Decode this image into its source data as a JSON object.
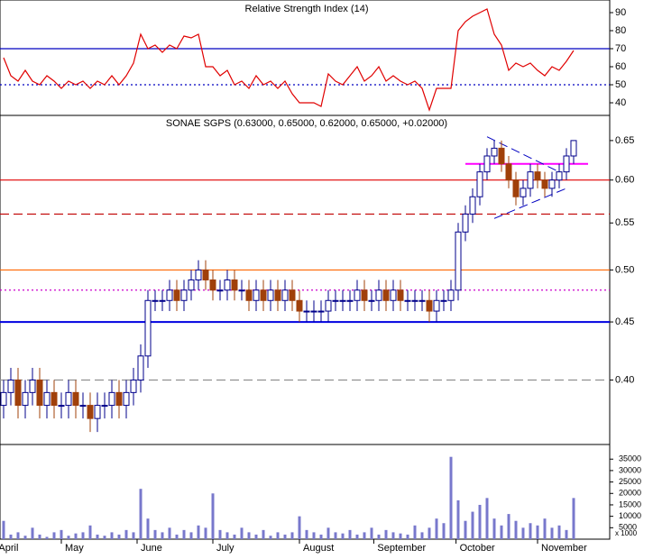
{
  "chart_data": [
    {
      "type": "line",
      "title": "Relative Strength Index (14)",
      "color": "#e00000",
      "ylim": [
        33,
        97
      ],
      "yticks": [
        40,
        50,
        60,
        70,
        80,
        90
      ],
      "levels": [
        {
          "value": 70,
          "color": "#0000c0",
          "style": "solid"
        },
        {
          "value": 50,
          "color": "#0000c0",
          "style": "dotted"
        }
      ],
      "values": [
        65,
        55,
        52,
        58,
        52,
        50,
        55,
        52,
        48,
        52,
        50,
        52,
        48,
        52,
        50,
        55,
        50,
        55,
        62,
        78,
        70,
        72,
        68,
        72,
        70,
        77,
        76,
        78,
        60,
        60,
        55,
        58,
        50,
        52,
        48,
        55,
        50,
        52,
        48,
        52,
        45,
        40,
        40,
        40,
        38,
        56,
        52,
        50,
        55,
        60,
        52,
        55,
        60,
        52,
        55,
        52,
        50,
        52,
        48,
        36,
        48,
        48,
        48,
        80,
        85,
        88,
        90,
        92,
        78,
        72,
        58,
        62,
        60,
        62,
        58,
        55,
        60,
        58,
        63,
        69
      ]
    },
    {
      "type": "candlestick",
      "title": "SONAE SGPS (0.63000, 0.65000, 0.62000, 0.65000, +0.02000)",
      "log_scale": true,
      "ylim": [
        0.351,
        0.684
      ],
      "yticks": [
        {
          "value": 0.4,
          "label": "0.40"
        },
        0.45,
        {
          "value": 0.5,
          "label": "0.50"
        },
        0.55,
        {
          "value": 0.6,
          "label": "0.60"
        },
        0.65
      ],
      "up_color": "#00008b",
      "down_color": "#a0400a",
      "open": [
        0.38,
        0.39,
        0.4,
        0.38,
        0.39,
        0.4,
        0.38,
        0.39,
        0.38,
        0.38,
        0.39,
        0.38,
        0.38,
        0.37,
        0.38,
        0.38,
        0.39,
        0.38,
        0.39,
        0.4,
        0.42,
        0.47,
        0.47,
        0.47,
        0.48,
        0.47,
        0.48,
        0.49,
        0.5,
        0.49,
        0.48,
        0.48,
        0.49,
        0.48,
        0.48,
        0.47,
        0.48,
        0.47,
        0.48,
        0.47,
        0.48,
        0.47,
        0.46,
        0.46,
        0.46,
        0.46,
        0.47,
        0.47,
        0.47,
        0.47,
        0.48,
        0.47,
        0.47,
        0.48,
        0.47,
        0.48,
        0.47,
        0.47,
        0.47,
        0.47,
        0.46,
        0.47,
        0.47,
        0.48,
        0.54,
        0.56,
        0.58,
        0.61,
        0.63,
        0.64,
        0.62,
        0.6,
        0.58,
        0.59,
        0.61,
        0.6,
        0.59,
        0.6,
        0.61,
        0.63
      ],
      "high": [
        0.4,
        0.41,
        0.41,
        0.4,
        0.41,
        0.41,
        0.4,
        0.4,
        0.39,
        0.4,
        0.4,
        0.39,
        0.39,
        0.39,
        0.39,
        0.4,
        0.4,
        0.4,
        0.41,
        0.43,
        0.48,
        0.48,
        0.48,
        0.49,
        0.49,
        0.49,
        0.5,
        0.51,
        0.51,
        0.5,
        0.49,
        0.5,
        0.5,
        0.49,
        0.49,
        0.49,
        0.49,
        0.49,
        0.49,
        0.49,
        0.49,
        0.48,
        0.47,
        0.47,
        0.47,
        0.48,
        0.48,
        0.48,
        0.48,
        0.49,
        0.49,
        0.48,
        0.49,
        0.49,
        0.49,
        0.49,
        0.48,
        0.48,
        0.48,
        0.48,
        0.48,
        0.48,
        0.49,
        0.55,
        0.57,
        0.59,
        0.62,
        0.64,
        0.65,
        0.65,
        0.63,
        0.61,
        0.6,
        0.62,
        0.62,
        0.61,
        0.61,
        0.62,
        0.64,
        0.65
      ],
      "low": [
        0.37,
        0.38,
        0.37,
        0.37,
        0.38,
        0.37,
        0.37,
        0.37,
        0.37,
        0.37,
        0.37,
        0.37,
        0.36,
        0.36,
        0.37,
        0.37,
        0.37,
        0.37,
        0.38,
        0.39,
        0.41,
        0.46,
        0.46,
        0.46,
        0.46,
        0.46,
        0.47,
        0.48,
        0.48,
        0.47,
        0.47,
        0.47,
        0.47,
        0.47,
        0.46,
        0.46,
        0.46,
        0.46,
        0.46,
        0.46,
        0.46,
        0.45,
        0.45,
        0.45,
        0.45,
        0.45,
        0.46,
        0.46,
        0.46,
        0.46,
        0.46,
        0.46,
        0.46,
        0.46,
        0.46,
        0.46,
        0.46,
        0.46,
        0.46,
        0.45,
        0.45,
        0.46,
        0.46,
        0.47,
        0.53,
        0.55,
        0.57,
        0.6,
        0.62,
        0.61,
        0.59,
        0.57,
        0.57,
        0.58,
        0.59,
        0.58,
        0.58,
        0.59,
        0.6,
        0.62
      ],
      "close": [
        0.39,
        0.4,
        0.38,
        0.39,
        0.4,
        0.38,
        0.39,
        0.38,
        0.38,
        0.39,
        0.38,
        0.38,
        0.37,
        0.38,
        0.38,
        0.39,
        0.38,
        0.39,
        0.4,
        0.42,
        0.47,
        0.47,
        0.47,
        0.48,
        0.47,
        0.48,
        0.49,
        0.5,
        0.49,
        0.48,
        0.48,
        0.49,
        0.48,
        0.48,
        0.47,
        0.48,
        0.47,
        0.48,
        0.47,
        0.48,
        0.47,
        0.46,
        0.46,
        0.46,
        0.46,
        0.47,
        0.47,
        0.47,
        0.47,
        0.48,
        0.47,
        0.47,
        0.48,
        0.47,
        0.48,
        0.47,
        0.47,
        0.47,
        0.47,
        0.46,
        0.47,
        0.47,
        0.48,
        0.54,
        0.56,
        0.58,
        0.61,
        0.63,
        0.64,
        0.62,
        0.6,
        0.58,
        0.59,
        0.61,
        0.6,
        0.59,
        0.6,
        0.61,
        0.63,
        0.65
      ],
      "levels": [
        {
          "value": 0.6,
          "color": "#e00000",
          "style": "solid"
        },
        {
          "value": 0.56,
          "color": "#c00000",
          "style": "dashed"
        },
        {
          "value": 0.5,
          "color": "#ff6600",
          "style": "solid"
        },
        {
          "value": 0.48,
          "color": "#cc00cc",
          "style": "dotted"
        },
        {
          "value": 0.45,
          "color": "#0000e0",
          "style": "solid"
        },
        {
          "value": 0.4,
          "color": "#909090",
          "style": "dashed"
        }
      ],
      "segments": [
        {
          "from": [
            64,
            0.62
          ],
          "to": [
            81,
            0.62
          ],
          "color": "#ff00ff",
          "style": "solid"
        },
        {
          "from": [
            67,
            0.655
          ],
          "to": [
            77,
            0.61
          ],
          "color": "#0000c0",
          "style": "dashed"
        },
        {
          "from": [
            68,
            0.555
          ],
          "to": [
            78,
            0.59
          ],
          "color": "#0000c0",
          "style": "dashed"
        }
      ]
    },
    {
      "type": "bar",
      "color": "#7878cc",
      "unit_label": "x 1000",
      "ylim": [
        0,
        41400
      ],
      "yticks": [
        5000,
        10000,
        15000,
        20000,
        25000,
        30000,
        35000
      ],
      "xticks": [
        {
          "value": -1.2,
          "label": "April"
        },
        {
          "value": 8,
          "label": "May"
        },
        {
          "value": 18.5,
          "label": "June"
        },
        {
          "value": 29,
          "label": "July"
        },
        {
          "value": 41,
          "label": "August"
        },
        {
          "value": 51.3,
          "label": "September"
        },
        {
          "value": 62.7,
          "label": "October"
        },
        {
          "value": 74,
          "label": "November"
        }
      ],
      "values": [
        8000,
        2000,
        3000,
        1500,
        5000,
        2000,
        1000,
        3000,
        4000,
        1500,
        2500,
        3000,
        6000,
        2000,
        1500,
        3000,
        2000,
        4000,
        3000,
        22000,
        9000,
        4000,
        3000,
        5000,
        2000,
        4000,
        3000,
        6000,
        5000,
        20000,
        4000,
        3000,
        2000,
        5000,
        3000,
        2000,
        4000,
        1500,
        3000,
        2000,
        3000,
        10000,
        4000,
        3000,
        2000,
        5000,
        3000,
        2500,
        4000,
        2000,
        3000,
        5000,
        2000,
        4000,
        3000,
        2500,
        2000,
        6000,
        3000,
        5000,
        9000,
        7000,
        36000,
        17000,
        8000,
        12000,
        15000,
        18000,
        9000,
        6000,
        11000,
        8000,
        5000,
        7000,
        6000,
        9000,
        5000,
        6000,
        4000,
        18000
      ]
    }
  ]
}
